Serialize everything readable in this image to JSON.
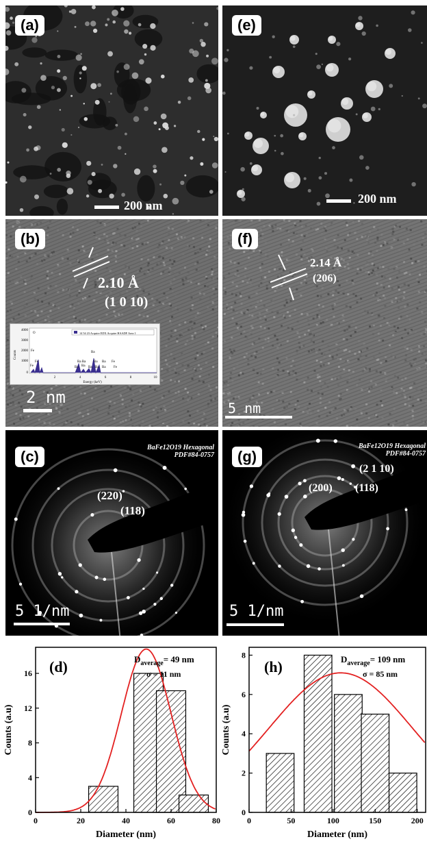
{
  "panels": {
    "a": {
      "label": "(a)",
      "scale": "200 nm"
    },
    "e": {
      "label": "(e)",
      "scale": "200 nm"
    },
    "b": {
      "label": "(b)",
      "d_spacing": "2.10 Å",
      "plane": "(1 0 10)",
      "scale": "2 nm",
      "eds": {
        "legend": "14 54 23 Acquire EDX Acquire HAADF Area 1",
        "ylabel": "Counts",
        "xlabel": "Energy (keV)",
        "yticks": [
          "4000",
          "3000",
          "2000",
          "1000",
          "0"
        ],
        "xticks": [
          "2",
          "4",
          "6",
          "8",
          "10"
        ],
        "peaks": [
          "O",
          "Fe",
          "Fe",
          "Fe",
          "Ba",
          "Ba Ba",
          "Ba",
          "Ba",
          "Fe",
          "Ba",
          "Ba",
          "Ba",
          "Ba",
          "Ba",
          "Fe"
        ]
      }
    },
    "f": {
      "label": "(f)",
      "d_spacing": "2.14 Å",
      "plane": "(206)",
      "scale": "5 nm"
    },
    "c": {
      "label": "(c)",
      "phase": "BaFe12O19 Hexagonal",
      "pdf": "PDF#84-0757",
      "ring1": "(220)",
      "ring2": "(118)",
      "scale": "5 1/nm"
    },
    "g": {
      "label": "(g)",
      "phase": "BaFe12O19 Hexagonal",
      "pdf": "PDF#84-0757",
      "ring1": "(2 1 10)",
      "ring2": "(200)",
      "ring3": "(118)",
      "scale": "5 1/nm"
    }
  },
  "colors": {
    "fit": "#e32020",
    "bar_edge": "#000000"
  },
  "chart_data": [
    {
      "type": "bar",
      "label": "(d)",
      "xlabel": "Diameter (nm)",
      "ylabel": "Counts (a.u)",
      "stat1": "D",
      "stat1_sub": "average",
      "stat1_val": "= 49 nm",
      "stat2": "σ = 11 nm",
      "x": [
        30,
        50,
        60,
        70
      ],
      "values": [
        3,
        16,
        14,
        2
      ],
      "bin_width": 13,
      "xlim": [
        0,
        80
      ],
      "ylim": [
        0,
        19
      ],
      "xticks": [
        0,
        20,
        40,
        60,
        80
      ],
      "yticks": [
        0,
        4,
        8,
        12,
        16
      ],
      "fit": {
        "type": "gaussian",
        "mean": 49,
        "sigma": 11,
        "peak": 18.8
      }
    },
    {
      "type": "bar",
      "label": "(h)",
      "xlabel": "Diameter (nm)",
      "ylabel": "Counts (a.u)",
      "stat1": "D",
      "stat1_sub": "average",
      "stat1_val": "= 109 nm",
      "stat2": "σ = 85 nm",
      "x": [
        37,
        82,
        118,
        150,
        183
      ],
      "values": [
        3,
        8,
        6,
        5,
        2
      ],
      "bin_width": 33,
      "xlim": [
        0,
        210
      ],
      "ylim": [
        0,
        8.4
      ],
      "xticks": [
        0,
        50,
        100,
        150,
        200
      ],
      "yticks": [
        0,
        2,
        4,
        6,
        8
      ],
      "fit": {
        "type": "gaussian",
        "mean": 109,
        "sigma": 85,
        "peak": 7.1
      }
    }
  ]
}
